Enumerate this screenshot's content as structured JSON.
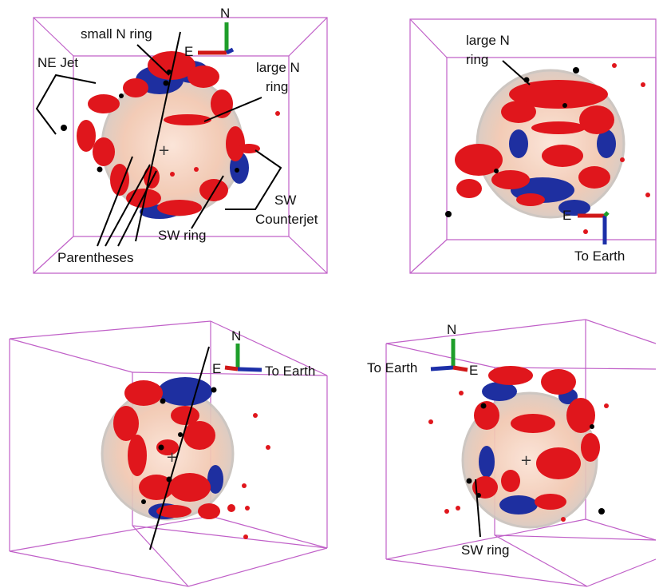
{
  "colors": {
    "box": "#c060c8",
    "shell_fill": "#f2c7b0",
    "shell_edge": "#c9c2bc",
    "ejecta_red": "#e0161c",
    "ejecta_blue": "#1e2fa0",
    "axis_n": "#1e9e2a",
    "axis_e": "#d01818",
    "axis_earth": "#1c2fa8",
    "knot_black": "#000000"
  },
  "panels": [
    {
      "id": "top-left",
      "axes": {
        "n": "N",
        "e": "E"
      },
      "labels": {
        "small_n_ring": "small N ring",
        "ne_jet": "NE Jet",
        "large_n_ring_1": "large N",
        "large_n_ring_2": "ring",
        "sw_counterjet_1": "SW",
        "sw_counterjet_2": "Counterjet",
        "sw_ring": "SW ring",
        "parentheses": "Parentheses"
      }
    },
    {
      "id": "top-right",
      "axes": {
        "e": "E",
        "earth": "To Earth"
      },
      "labels": {
        "large_n_ring_1": "large N",
        "large_n_ring_2": "ring"
      }
    },
    {
      "id": "bottom-left",
      "axes": {
        "n": "N",
        "e": "E",
        "earth": "To Earth"
      }
    },
    {
      "id": "bottom-right",
      "axes": {
        "n": "N",
        "e": "E",
        "earth": "To Earth"
      },
      "labels": {
        "sw_ring": "SW ring"
      }
    }
  ]
}
